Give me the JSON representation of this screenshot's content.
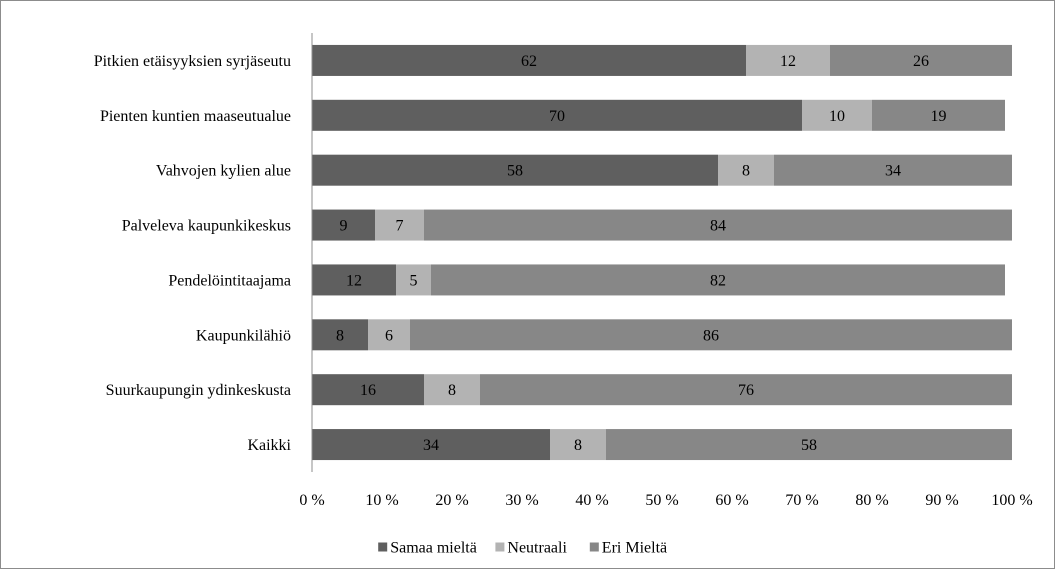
{
  "chart_data": {
    "type": "bar",
    "orientation": "horizontal",
    "stacked": "percent",
    "title": "",
    "xlabel": "",
    "ylabel": "",
    "categories": [
      "Pitkien etäisyyksien syrjäseutu",
      "Pienten kuntien maaseutualue",
      "Vahvojen kylien alue",
      "Palveleva kaupunkikeskus",
      "Pendelöintitaajama",
      "Kaupunkilähiö",
      "Suurkaupungin ydinkeskusta",
      "Kaikki"
    ],
    "series": [
      {
        "name": "Samaa mieltä",
        "color": "#5f5f5f",
        "values": [
          62,
          70,
          58,
          9,
          12,
          8,
          16,
          34
        ]
      },
      {
        "name": "Neutraali",
        "color": "#b3b3b3",
        "values": [
          12,
          10,
          8,
          7,
          5,
          6,
          8,
          8
        ]
      },
      {
        "name": "Eri Mieltä",
        "color": "#878787",
        "values": [
          26,
          19,
          34,
          84,
          82,
          86,
          76,
          58
        ]
      }
    ],
    "data_labels": [
      [
        "62",
        "12",
        "26"
      ],
      [
        "70",
        "10",
        "19"
      ],
      [
        "58",
        "8",
        "34"
      ],
      [
        "9",
        "7",
        "84"
      ],
      [
        "12",
        "5",
        "82"
      ],
      [
        "8",
        "6",
        "86"
      ],
      [
        "16",
        "8",
        "76"
      ],
      [
        "34",
        "8",
        "58"
      ]
    ],
    "xlim": [
      0,
      100
    ],
    "xticks": [
      "0 %",
      "10 %",
      "20 %",
      "30 %",
      "40 %",
      "50 %",
      "60 %",
      "70 %",
      "80 %",
      "90 %",
      "100 %"
    ],
    "grid": false,
    "legend_position": "bottom"
  }
}
